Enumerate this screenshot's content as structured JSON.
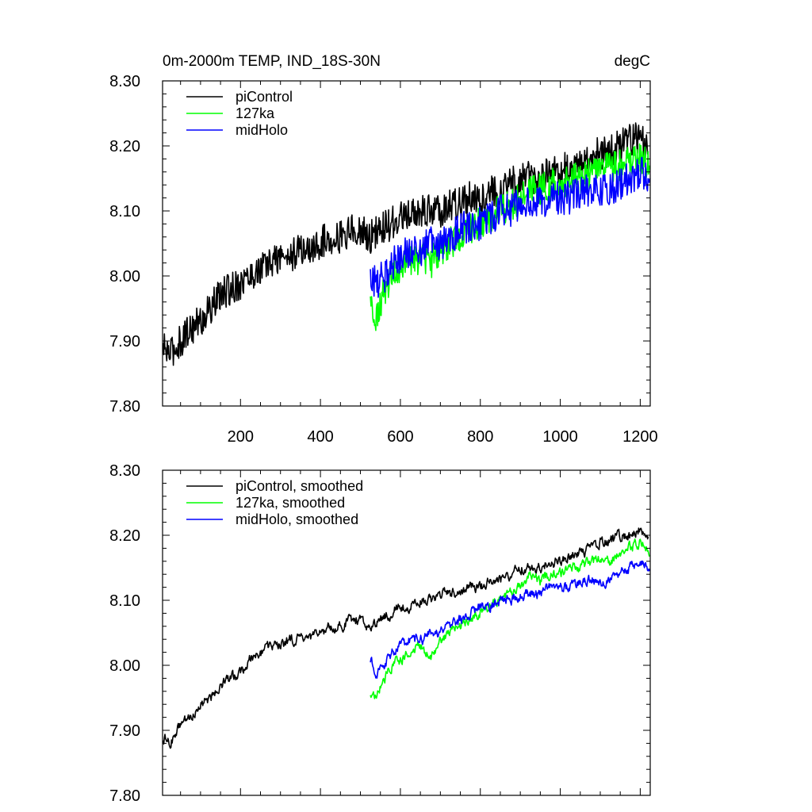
{
  "chart_data": [
    {
      "type": "line",
      "title": "0m-2000m TEMP, IND_18S-30N",
      "units": "degC",
      "xlim": [
        5,
        1225
      ],
      "ylim": [
        7.8,
        8.3
      ],
      "xticks": [
        200,
        400,
        600,
        800,
        1000,
        1200
      ],
      "xtick_labels": [
        "200",
        "400",
        "600",
        "800",
        "1000",
        "1200"
      ],
      "yticks": [
        7.8,
        7.9,
        8.0,
        8.1,
        8.2,
        8.3
      ],
      "ytick_labels": [
        "7.80",
        "7.90",
        "8.00",
        "8.10",
        "8.20",
        "8.30"
      ],
      "grid": false,
      "legend_position": "top-left",
      "series": [
        {
          "name": "piControl",
          "color": "#000000",
          "x": [
            5,
            25,
            50,
            75,
            100,
            125,
            150,
            175,
            200,
            225,
            250,
            275,
            300,
            325,
            350,
            375,
            400,
            425,
            450,
            475,
            500,
            525,
            550,
            575,
            600,
            625,
            650,
            675,
            700,
            725,
            750,
            775,
            800,
            825,
            850,
            875,
            900,
            925,
            950,
            975,
            1000,
            1025,
            1050,
            1075,
            1100,
            1125,
            1150,
            1175,
            1200,
            1220
          ],
          "values": [
            7.89,
            7.88,
            7.9,
            7.92,
            7.93,
            7.95,
            7.97,
            7.98,
            7.99,
            8.0,
            8.01,
            8.02,
            8.03,
            8.03,
            8.04,
            8.04,
            8.05,
            8.06,
            8.06,
            8.07,
            8.07,
            8.06,
            8.07,
            8.08,
            8.09,
            8.09,
            8.1,
            8.1,
            8.1,
            8.11,
            8.11,
            8.12,
            8.12,
            8.13,
            8.13,
            8.14,
            8.15,
            8.15,
            8.15,
            8.16,
            8.16,
            8.17,
            8.17,
            8.18,
            8.19,
            8.19,
            8.2,
            8.21,
            8.21,
            8.2
          ]
        },
        {
          "name": "127ka",
          "color": "#00ff00",
          "x": [
            525,
            540,
            560,
            580,
            600,
            625,
            650,
            675,
            700,
            725,
            750,
            775,
            800,
            825,
            850,
            875,
            900,
            925,
            950,
            975,
            1000,
            1025,
            1050,
            1075,
            1100,
            1125,
            1150,
            1175,
            1200,
            1225
          ],
          "values": [
            7.96,
            7.94,
            7.98,
            8.0,
            8.01,
            8.02,
            8.03,
            8.02,
            8.04,
            8.05,
            8.06,
            8.07,
            8.08,
            8.09,
            8.1,
            8.11,
            8.12,
            8.14,
            8.13,
            8.14,
            8.14,
            8.15,
            8.15,
            8.16,
            8.16,
            8.17,
            8.17,
            8.18,
            8.18,
            8.17
          ]
        },
        {
          "name": "midHolo",
          "color": "#0000ff",
          "x": [
            525,
            540,
            560,
            580,
            600,
            625,
            650,
            675,
            700,
            725,
            750,
            775,
            800,
            825,
            850,
            875,
            900,
            925,
            950,
            975,
            1000,
            1025,
            1050,
            1075,
            1100,
            1125,
            1150,
            1175,
            1200,
            1225
          ],
          "values": [
            8.0,
            7.99,
            8.0,
            8.02,
            8.03,
            8.04,
            8.04,
            8.05,
            8.05,
            8.06,
            8.07,
            8.08,
            8.08,
            8.09,
            8.1,
            8.1,
            8.11,
            8.11,
            8.11,
            8.12,
            8.12,
            8.12,
            8.13,
            8.13,
            8.13,
            8.13,
            8.14,
            8.15,
            8.16,
            8.15
          ]
        }
      ]
    },
    {
      "type": "line",
      "xlim": [
        5,
        1225
      ],
      "ylim": [
        7.8,
        8.3
      ],
      "xticks": [
        200,
        400,
        600,
        800,
        1000,
        1200
      ],
      "yticks": [
        7.8,
        7.9,
        8.0,
        8.1,
        8.2,
        8.3
      ],
      "ytick_labels": [
        "7.80",
        "7.90",
        "8.00",
        "8.10",
        "8.20",
        "8.30"
      ],
      "grid": false,
      "legend_position": "top-left",
      "series": [
        {
          "name": "piControl, smoothed",
          "color": "#000000",
          "x": [
            5,
            25,
            50,
            75,
            100,
            125,
            150,
            175,
            200,
            225,
            250,
            275,
            300,
            325,
            350,
            375,
            400,
            425,
            450,
            475,
            500,
            525,
            550,
            575,
            600,
            625,
            650,
            675,
            700,
            725,
            750,
            775,
            800,
            825,
            850,
            875,
            900,
            925,
            950,
            975,
            1000,
            1025,
            1050,
            1075,
            1100,
            1125,
            1150,
            1175,
            1200,
            1220
          ],
          "values": [
            7.89,
            7.88,
            7.91,
            7.92,
            7.94,
            7.95,
            7.97,
            7.98,
            7.99,
            8.01,
            8.02,
            8.03,
            8.03,
            8.04,
            8.04,
            8.04,
            8.05,
            8.06,
            8.06,
            8.07,
            8.07,
            8.06,
            8.07,
            8.08,
            8.09,
            8.09,
            8.1,
            8.1,
            8.11,
            8.11,
            8.11,
            8.12,
            8.12,
            8.13,
            8.13,
            8.14,
            8.15,
            8.15,
            8.15,
            8.16,
            8.16,
            8.17,
            8.17,
            8.18,
            8.19,
            8.19,
            8.2,
            8.2,
            8.21,
            8.2
          ]
        },
        {
          "name": "127ka, smoothed",
          "color": "#00ff00",
          "x": [
            525,
            540,
            560,
            580,
            600,
            625,
            650,
            675,
            700,
            725,
            750,
            775,
            800,
            825,
            850,
            875,
            900,
            925,
            950,
            975,
            1000,
            1025,
            1050,
            1075,
            1100,
            1125,
            1150,
            1175,
            1200,
            1225
          ],
          "values": [
            7.96,
            7.95,
            7.98,
            8.0,
            8.01,
            8.02,
            8.03,
            8.01,
            8.04,
            8.05,
            8.06,
            8.07,
            8.08,
            8.09,
            8.1,
            8.11,
            8.12,
            8.14,
            8.13,
            8.14,
            8.14,
            8.15,
            8.15,
            8.16,
            8.16,
            8.16,
            8.17,
            8.18,
            8.19,
            8.17
          ]
        },
        {
          "name": "midHolo, smoothed",
          "color": "#0000ff",
          "x": [
            525,
            540,
            560,
            580,
            600,
            625,
            650,
            675,
            700,
            725,
            750,
            775,
            800,
            825,
            850,
            875,
            900,
            925,
            950,
            975,
            1000,
            1025,
            1050,
            1075,
            1100,
            1125,
            1150,
            1175,
            1200,
            1225
          ],
          "values": [
            8.01,
            7.99,
            8.0,
            8.02,
            8.03,
            8.04,
            8.04,
            8.05,
            8.05,
            8.06,
            8.07,
            8.08,
            8.09,
            8.09,
            8.1,
            8.1,
            8.11,
            8.11,
            8.11,
            8.12,
            8.12,
            8.12,
            8.13,
            8.13,
            8.13,
            8.13,
            8.14,
            8.15,
            8.16,
            8.15
          ]
        }
      ]
    }
  ]
}
